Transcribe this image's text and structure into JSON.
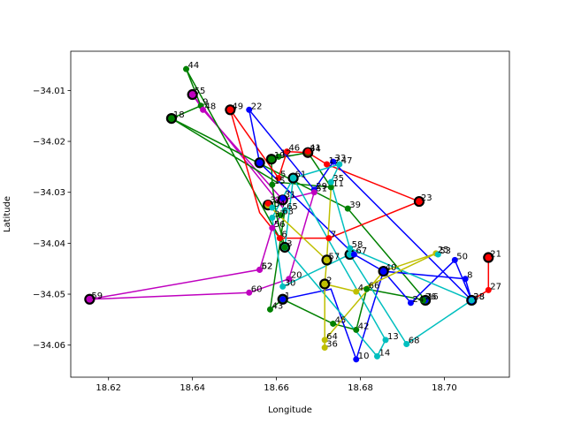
{
  "chart_data": {
    "type": "scatter",
    "title": "",
    "xlabel": "Longitude",
    "ylabel": "Latitude",
    "xlim": [
      18.611,
      18.7155
    ],
    "ylim": [
      -34.0663,
      -34.0023
    ],
    "x_ticks": [
      18.62,
      18.64,
      18.66,
      18.68,
      18.7
    ],
    "x_tick_labels": [
      "18.62",
      "18.64",
      "18.66",
      "18.68",
      "18.70"
    ],
    "y_ticks": [
      -34.06,
      -34.05,
      -34.04,
      -34.03,
      -34.02,
      -34.01
    ],
    "y_tick_labels": [
      "−34.06",
      "−34.05",
      "−34.04",
      "−34.03",
      "−34.02",
      "−34.01"
    ],
    "grid": false,
    "colors": {
      "red": "#ff0000",
      "blue": "#0000ff",
      "green": "#008000",
      "magenta": "#bf00bf",
      "yellow": "#bfbf00",
      "cyan": "#00bfbf",
      "black": "#000000"
    },
    "points": [
      {
        "id": "1",
        "x": 18.6615,
        "y": -34.051,
        "color": "blue"
      },
      {
        "id": "2",
        "x": 18.6715,
        "y": -34.048,
        "color": "yellow"
      },
      {
        "id": "3",
        "x": 18.662,
        "y": -34.0408,
        "color": "green"
      },
      {
        "id": "4",
        "x": 18.679,
        "y": -34.0495,
        "color": "yellow"
      },
      {
        "id": "5",
        "x": 18.6605,
        "y": -34.0272,
        "color": "red"
      },
      {
        "id": "6",
        "x": 18.6608,
        "y": -34.039,
        "color": "red"
      },
      {
        "id": "7",
        "x": 18.6725,
        "y": -34.039,
        "color": "red"
      },
      {
        "id": "8",
        "x": 18.705,
        "y": -34.047,
        "color": "blue"
      },
      {
        "id": "9",
        "x": 18.642,
        "y": -34.013,
        "color": "green"
      },
      {
        "id": "10",
        "x": 18.679,
        "y": -34.0628,
        "color": "blue"
      },
      {
        "id": "11",
        "x": 18.673,
        "y": -34.029,
        "color": "green"
      },
      {
        "id": "12",
        "x": 18.6605,
        "y": -34.023,
        "color": "green"
      },
      {
        "id": "13",
        "x": 18.686,
        "y": -34.059,
        "color": "cyan"
      },
      {
        "id": "14",
        "x": 18.684,
        "y": -34.0622,
        "color": "cyan"
      },
      {
        "id": "15",
        "x": 18.659,
        "y": -34.0285,
        "color": "green"
      },
      {
        "id": "16",
        "x": 18.6955,
        "y": -34.0512,
        "color": "blue"
      },
      {
        "id": "17",
        "x": 18.672,
        "y": -34.0245,
        "color": "red"
      },
      {
        "id": "18",
        "x": 18.635,
        "y": -34.0155,
        "color": "green"
      },
      {
        "id": "19",
        "x": 18.659,
        "y": -34.0235,
        "color": "green"
      },
      {
        "id": "20",
        "x": 18.663,
        "y": -34.047,
        "color": "magenta"
      },
      {
        "id": "21",
        "x": 18.7105,
        "y": -34.0428,
        "color": "red"
      },
      {
        "id": "22",
        "x": 18.6535,
        "y": -34.0138,
        "color": "blue"
      },
      {
        "id": "23",
        "x": 18.694,
        "y": -34.0318,
        "color": "red"
      },
      {
        "id": "24",
        "x": 18.692,
        "y": -34.0517,
        "color": "blue"
      },
      {
        "id": "25",
        "x": 18.698,
        "y": -34.042,
        "color": "yellow"
      },
      {
        "id": "26",
        "x": 18.695,
        "y": -34.0512,
        "color": "green"
      },
      {
        "id": "27",
        "x": 18.7105,
        "y": -34.0492,
        "color": "red"
      },
      {
        "id": "28",
        "x": 18.7065,
        "y": -34.0512,
        "color": "blue"
      },
      {
        "id": "29",
        "x": 18.669,
        "y": -34.0295,
        "color": "blue"
      },
      {
        "id": "30",
        "x": 18.6615,
        "y": -34.0485,
        "color": "cyan"
      },
      {
        "id": "31",
        "x": 18.6615,
        "y": -34.0312,
        "color": "blue"
      },
      {
        "id": "32",
        "x": 18.658,
        "y": -34.0322,
        "color": "red"
      },
      {
        "id": "33",
        "x": 18.6735,
        "y": -34.024,
        "color": "blue"
      },
      {
        "id": "34",
        "x": 18.6675,
        "y": -34.0222,
        "color": "green"
      },
      {
        "id": "35",
        "x": 18.673,
        "y": -34.028,
        "color": "cyan"
      },
      {
        "id": "36",
        "x": 18.6715,
        "y": -34.0605,
        "color": "yellow"
      },
      {
        "id": "37",
        "x": 18.659,
        "y": -34.035,
        "color": "cyan"
      },
      {
        "id": "38",
        "x": 18.7065,
        "y": -34.0512,
        "color": "cyan"
      },
      {
        "id": "39",
        "x": 18.677,
        "y": -34.0332,
        "color": "green"
      },
      {
        "id": "40",
        "x": 18.6855,
        "y": -34.0455,
        "color": "blue"
      },
      {
        "id": "41",
        "x": 18.6675,
        "y": -34.022,
        "color": "red"
      },
      {
        "id": "42",
        "x": 18.679,
        "y": -34.057,
        "color": "green"
      },
      {
        "id": "43",
        "x": 18.6585,
        "y": -34.053,
        "color": "green"
      },
      {
        "id": "44",
        "x": 18.6385,
        "y": -34.0058,
        "color": "green"
      },
      {
        "id": "45",
        "x": 18.6735,
        "y": -34.0558,
        "color": "green"
      },
      {
        "id": "46",
        "x": 18.6625,
        "y": -34.022,
        "color": "red"
      },
      {
        "id": "47",
        "x": 18.675,
        "y": -34.0245,
        "color": "cyan"
      },
      {
        "id": "48",
        "x": 18.6425,
        "y": -34.0138,
        "color": "magenta"
      },
      {
        "id": "49",
        "x": 18.649,
        "y": -34.0138,
        "color": "red"
      },
      {
        "id": "50",
        "x": 18.7025,
        "y": -34.0433,
        "color": "blue"
      },
      {
        "id": "51",
        "x": 18.669,
        "y": -34.03,
        "color": "magenta"
      },
      {
        "id": "52",
        "x": 18.656,
        "y": -34.0452,
        "color": "magenta"
      },
      {
        "id": "53",
        "x": 18.6985,
        "y": -34.0422,
        "color": "cyan"
      },
      {
        "id": "54",
        "x": 18.659,
        "y": -34.033,
        "color": "cyan"
      },
      {
        "id": "55",
        "x": 18.64,
        "y": -34.0108,
        "color": "magenta"
      },
      {
        "id": "56",
        "x": 18.659,
        "y": -34.037,
        "color": "magenta"
      },
      {
        "id": "57",
        "x": 18.672,
        "y": -34.0433,
        "color": "yellow"
      },
      {
        "id": "58",
        "x": 18.6775,
        "y": -34.041,
        "color": "cyan"
      },
      {
        "id": "59",
        "x": 18.6155,
        "y": -34.051,
        "color": "magenta"
      },
      {
        "id": "60",
        "x": 18.6535,
        "y": -34.0497,
        "color": "magenta"
      },
      {
        "id": "61",
        "x": 18.664,
        "y": -34.0272,
        "color": "cyan"
      },
      {
        "id": "62",
        "x": 18.656,
        "y": -34.0452,
        "color": "magenta"
      },
      {
        "id": "63",
        "x": 18.661,
        "y": -34.0345,
        "color": "green"
      },
      {
        "id": "64",
        "x": 18.6715,
        "y": -34.059,
        "color": "yellow"
      },
      {
        "id": "65",
        "x": 18.662,
        "y": -34.0335,
        "color": "cyan"
      },
      {
        "id": "66",
        "x": 18.6815,
        "y": -34.049,
        "color": "green"
      },
      {
        "id": "67",
        "x": 18.6785,
        "y": -34.0422,
        "color": "blue"
      },
      {
        "id": "68",
        "x": 18.691,
        "y": -34.0598,
        "color": "cyan"
      }
    ],
    "depots": [
      {
        "x": 18.6155,
        "y": -34.051,
        "color": "magenta"
      },
      {
        "x": 18.64,
        "y": -34.0108,
        "color": "magenta"
      },
      {
        "x": 18.635,
        "y": -34.0155,
        "color": "green"
      },
      {
        "x": 18.649,
        "y": -34.0138,
        "color": "red"
      },
      {
        "x": 18.656,
        "y": -34.0242,
        "color": "blue"
      },
      {
        "x": 18.6588,
        "y": -34.0235,
        "color": "green"
      },
      {
        "x": 18.6675,
        "y": -34.0222,
        "color": "red"
      },
      {
        "x": 18.664,
        "y": -34.0272,
        "color": "cyan"
      },
      {
        "x": 18.658,
        "y": -34.0325,
        "color": "yellow"
      },
      {
        "x": 18.6615,
        "y": -34.0315,
        "color": "magenta"
      },
      {
        "x": 18.662,
        "y": -34.0408,
        "color": "cyan"
      },
      {
        "x": 18.6615,
        "y": -34.051,
        "color": "green"
      },
      {
        "x": 18.6715,
        "y": -34.048,
        "color": "yellow"
      },
      {
        "x": 18.672,
        "y": -34.0433,
        "color": "yellow"
      },
      {
        "x": 18.6775,
        "y": -34.0422,
        "color": "cyan"
      },
      {
        "x": 18.6855,
        "y": -34.0455,
        "color": "blue"
      },
      {
        "x": 18.694,
        "y": -34.0318,
        "color": "red"
      },
      {
        "x": 18.6955,
        "y": -34.0512,
        "color": "green"
      },
      {
        "x": 18.7065,
        "y": -34.0512,
        "color": "blue"
      },
      {
        "x": 18.7105,
        "y": -34.0428,
        "color": "red"
      }
    ],
    "routes": [
      {
        "color": "magenta",
        "path": [
          [
            18.6155,
            -34.051
          ],
          [
            18.656,
            -34.0452
          ],
          [
            18.659,
            -34.037
          ],
          [
            18.662,
            -34.0335
          ],
          [
            18.64,
            -34.0108
          ],
          [
            18.6425,
            -34.0138
          ],
          [
            18.6615,
            -34.0315
          ],
          [
            18.669,
            -34.03
          ],
          [
            18.663,
            -34.047
          ],
          [
            18.6535,
            -34.0497
          ],
          [
            18.6155,
            -34.051
          ]
        ]
      },
      {
        "color": "green",
        "path": [
          [
            18.635,
            -34.0155
          ],
          [
            18.642,
            -34.013
          ],
          [
            18.6385,
            -34.0058
          ],
          [
            18.662,
            -34.0408
          ],
          [
            18.66,
            -34.0345
          ],
          [
            18.659,
            -34.0285
          ],
          [
            18.6588,
            -34.0235
          ],
          [
            18.6675,
            -34.0222
          ],
          [
            18.673,
            -34.029
          ],
          [
            18.66,
            -34.028
          ],
          [
            18.635,
            -34.0155
          ]
        ]
      },
      {
        "color": "green",
        "path": [
          [
            18.635,
            -34.0155
          ],
          [
            18.677,
            -34.0332
          ],
          [
            18.6955,
            -34.0512
          ],
          [
            18.6815,
            -34.049
          ],
          [
            18.679,
            -34.057
          ],
          [
            18.6735,
            -34.0558
          ],
          [
            18.6615,
            -34.051
          ],
          [
            18.6585,
            -34.053
          ],
          [
            18.662,
            -34.0335
          ]
        ]
      },
      {
        "color": "red",
        "path": [
          [
            18.649,
            -34.0138
          ],
          [
            18.6605,
            -34.0272
          ],
          [
            18.6625,
            -34.022
          ],
          [
            18.6675,
            -34.0222
          ],
          [
            18.672,
            -34.0245
          ],
          [
            18.694,
            -34.0318
          ],
          [
            18.6725,
            -34.039
          ],
          [
            18.6608,
            -34.039
          ],
          [
            18.656,
            -34.034
          ],
          [
            18.649,
            -34.0138
          ]
        ]
      },
      {
        "color": "red",
        "path": [
          [
            18.7105,
            -34.0428
          ],
          [
            18.7105,
            -34.0492
          ],
          [
            18.7065,
            -34.0512
          ]
        ]
      },
      {
        "color": "blue",
        "path": [
          [
            18.656,
            -34.0242
          ],
          [
            18.6535,
            -34.0138
          ],
          [
            18.669,
            -34.0295
          ],
          [
            18.6735,
            -34.024
          ],
          [
            18.7065,
            -34.0512
          ],
          [
            18.705,
            -34.047
          ],
          [
            18.6855,
            -34.0455
          ],
          [
            18.692,
            -34.0517
          ],
          [
            18.7025,
            -34.0433
          ],
          [
            18.7065,
            -34.0512
          ]
        ]
      },
      {
        "color": "blue",
        "path": [
          [
            18.656,
            -34.0242
          ],
          [
            18.6785,
            -34.0422
          ],
          [
            18.6855,
            -34.0455
          ],
          [
            18.679,
            -34.0628
          ],
          [
            18.673,
            -34.049
          ],
          [
            18.6615,
            -34.051
          ]
        ]
      },
      {
        "color": "cyan",
        "path": [
          [
            18.664,
            -34.0272
          ],
          [
            18.675,
            -34.0245
          ],
          [
            18.673,
            -34.028
          ],
          [
            18.6775,
            -34.041
          ],
          [
            18.7065,
            -34.0512
          ],
          [
            18.691,
            -34.0598
          ],
          [
            18.6775,
            -34.0422
          ],
          [
            18.6615,
            -34.0485
          ],
          [
            18.659,
            -34.035
          ],
          [
            18.664,
            -34.0272
          ]
        ]
      },
      {
        "color": "cyan",
        "path": [
          [
            18.664,
            -34.0272
          ],
          [
            18.686,
            -34.059
          ],
          [
            18.684,
            -34.0622
          ],
          [
            18.662,
            -34.0408
          ],
          [
            18.664,
            -34.0272
          ]
        ]
      },
      {
        "color": "yellow",
        "path": [
          [
            18.658,
            -34.0325
          ],
          [
            18.672,
            -34.0433
          ],
          [
            18.673,
            -34.029
          ],
          [
            18.672,
            -34.0433
          ],
          [
            18.6715,
            -34.048
          ],
          [
            18.679,
            -34.0495
          ],
          [
            18.698,
            -34.042
          ],
          [
            18.6855,
            -34.0455
          ],
          [
            18.6715,
            -34.059
          ],
          [
            18.6715,
            -34.0605
          ],
          [
            18.6715,
            -34.048
          ]
        ]
      }
    ]
  }
}
